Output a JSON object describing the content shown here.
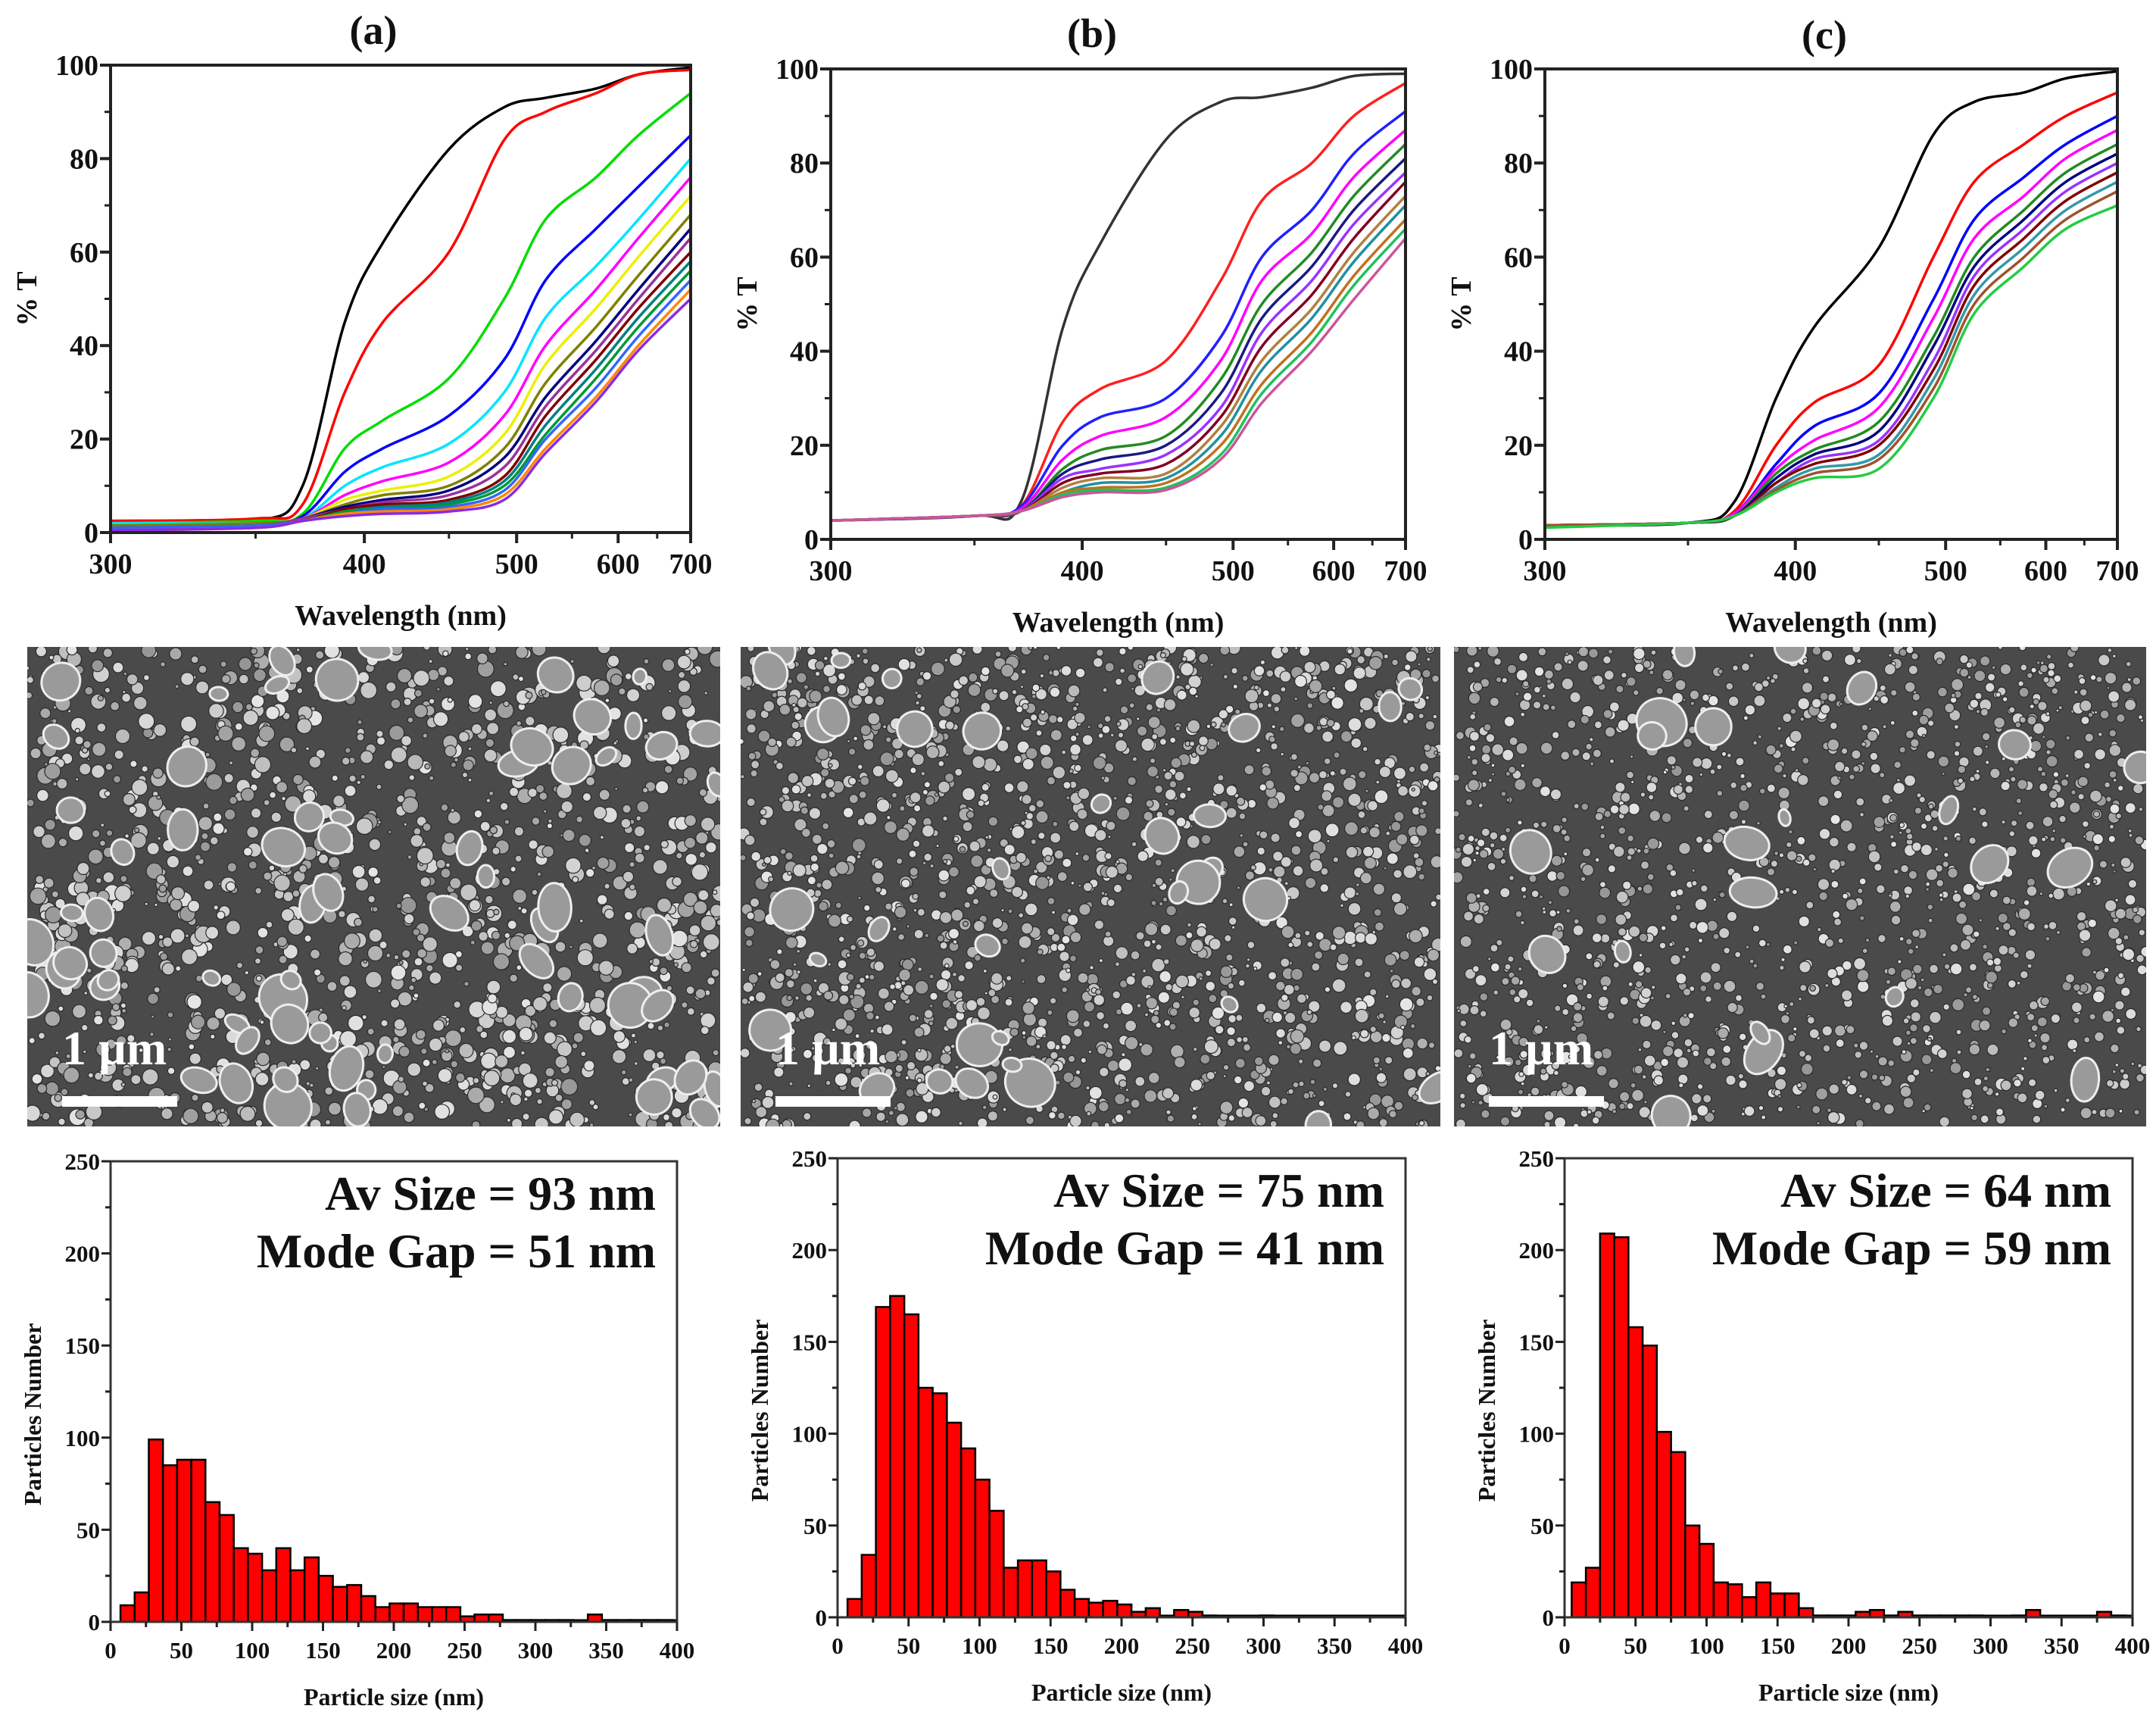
{
  "panels": [
    {
      "label": "(a)",
      "scale_label": "1 µm"
    },
    {
      "label": "(b)",
      "scale_label": "1 µm"
    },
    {
      "label": "(c)",
      "scale_label": "1 µm"
    }
  ],
  "chart_data": [
    {
      "type": "line",
      "panel": "(a)",
      "title": "(a)",
      "xlabel": "Wavelength (nm)",
      "ylabel": "% T",
      "xlim": [
        300,
        700
      ],
      "ylim": [
        0,
        100
      ],
      "x_scale": "reciprocal (energy)",
      "xticks": [
        "300",
        "400",
        "500",
        "600",
        "700"
      ],
      "yticks": [
        "0",
        "20",
        "40",
        "60",
        "80",
        "100"
      ],
      "x": [
        300,
        350,
        370,
        390,
        410,
        450,
        490,
        525,
        575,
        625,
        700
      ],
      "series": [
        {
          "color": "#000000",
          "values": [
            2,
            2.5,
            10,
            45,
            62,
            82,
            91,
            93,
            95,
            98,
            99.5
          ]
        },
        {
          "color": "#ff0000",
          "values": [
            2.5,
            3,
            6,
            30,
            45,
            60,
            84,
            90,
            94,
            98,
            99
          ]
        },
        {
          "color": "#00dd00",
          "values": [
            2,
            2.5,
            4,
            18,
            24,
            33,
            50,
            67,
            76,
            85,
            94
          ]
        },
        {
          "color": "#0000ff",
          "values": [
            1.5,
            2,
            3.5,
            13,
            18,
            25,
            37,
            54,
            65,
            74,
            85
          ]
        },
        {
          "color": "#00e5ff",
          "values": [
            2,
            2,
            3,
            10,
            14,
            19,
            30,
            46,
            57,
            67,
            80
          ]
        },
        {
          "color": "#ff00ff",
          "values": [
            1.5,
            2,
            3,
            8,
            11,
            15,
            25,
            40,
            52,
            63,
            76
          ]
        },
        {
          "color": "#eeee00",
          "values": [
            1.5,
            2,
            3,
            7,
            9,
            12,
            21,
            36,
            48,
            59,
            72
          ]
        },
        {
          "color": "#808000",
          "values": [
            1.5,
            2,
            3,
            6,
            8,
            10,
            18,
            32,
            44,
            55,
            68
          ]
        },
        {
          "color": "#000080",
          "values": [
            1,
            1.5,
            3,
            5.5,
            7,
            9,
            16,
            29,
            41,
            52,
            65
          ]
        },
        {
          "color": "#993399",
          "values": [
            1,
            1.5,
            3,
            5,
            6.5,
            8,
            14,
            27,
            39,
            50,
            63
          ]
        },
        {
          "color": "#800000",
          "values": [
            1,
            1.5,
            2.5,
            5,
            6,
            7,
            12,
            25,
            37,
            48,
            60
          ]
        },
        {
          "color": "#008080",
          "values": [
            1,
            1.5,
            2.5,
            4.5,
            5.5,
            6.5,
            11,
            23,
            35,
            46,
            58
          ]
        },
        {
          "color": "#009933",
          "values": [
            1,
            1.5,
            2.5,
            4.5,
            5,
            6,
            10,
            21,
            33,
            44,
            56
          ]
        },
        {
          "color": "#3366ff",
          "values": [
            1,
            1.5,
            2.5,
            4,
            5,
            5.5,
            9,
            20,
            31,
            42,
            54
          ]
        },
        {
          "color": "#ff8800",
          "values": [
            0.5,
            1,
            2.5,
            4,
            4.5,
            5,
            8,
            18,
            29,
            40,
            52
          ]
        },
        {
          "color": "#8a2be2",
          "values": [
            0.5,
            1,
            2.5,
            3.5,
            4,
            4.5,
            7,
            17,
            28,
            39,
            50
          ]
        }
      ]
    },
    {
      "type": "line",
      "panel": "(b)",
      "title": "(b)",
      "xlabel": "Wavelength (nm)",
      "ylabel": "% T",
      "xlim": [
        300,
        700
      ],
      "ylim": [
        0,
        100
      ],
      "x_scale": "reciprocal (energy)",
      "xticks": [
        "300",
        "400",
        "500",
        "600",
        "700"
      ],
      "yticks": [
        "0",
        "20",
        "40",
        "60",
        "80",
        "100"
      ],
      "x": [
        300,
        350,
        370,
        390,
        410,
        450,
        490,
        525,
        575,
        625,
        700
      ],
      "series": [
        {
          "color": "#333333",
          "values": [
            4,
            5,
            8,
            45,
            63,
            85,
            93,
            94,
            96,
            98.5,
            99
          ]
        },
        {
          "color": "#ff2020",
          "values": [
            4,
            5,
            7,
            25,
            32,
            38,
            55,
            72,
            80,
            90,
            97
          ]
        },
        {
          "color": "#2020ff",
          "values": [
            4,
            5,
            7,
            20,
            26,
            30,
            43,
            60,
            70,
            82,
            91
          ]
        },
        {
          "color": "#ff00ff",
          "values": [
            4,
            5,
            6.5,
            17,
            22,
            26,
            38,
            55,
            65,
            77,
            87
          ]
        },
        {
          "color": "#228b22",
          "values": [
            4,
            5,
            6,
            15,
            19,
            22,
            34,
            50,
            61,
            73,
            84
          ]
        },
        {
          "color": "#1a1a80",
          "values": [
            4,
            5,
            6,
            14,
            17,
            20,
            31,
            47,
            58,
            70,
            81
          ]
        },
        {
          "color": "#9933ff",
          "values": [
            4,
            5,
            6,
            13,
            15,
            18,
            28,
            44,
            55,
            67,
            78
          ]
        },
        {
          "color": "#800020",
          "values": [
            4,
            5,
            6,
            12,
            14,
            16,
            26,
            41,
            52,
            64,
            76
          ]
        },
        {
          "color": "#b08040",
          "values": [
            4,
            5,
            6,
            11,
            13,
            14,
            24,
            38,
            49,
            61,
            73
          ]
        },
        {
          "color": "#2090a0",
          "values": [
            4,
            5,
            6,
            10,
            12,
            13,
            22,
            36,
            47,
            59,
            71
          ]
        },
        {
          "color": "#c07020",
          "values": [
            4,
            5,
            6,
            10,
            11,
            12,
            20,
            33,
            44,
            56,
            68
          ]
        },
        {
          "color": "#20c060",
          "values": [
            4,
            5,
            6,
            9.5,
            10.5,
            11,
            18,
            31,
            42,
            54,
            66
          ]
        },
        {
          "color": "#cc5599",
          "values": [
            4,
            5,
            6,
            9,
            10,
            10.5,
            17,
            29,
            40,
            51,
            64
          ]
        }
      ]
    },
    {
      "type": "line",
      "panel": "(c)",
      "title": "(c)",
      "xlabel": "Wavelength (nm)",
      "ylabel": "% T",
      "xlim": [
        300,
        700
      ],
      "ylim": [
        0,
        100
      ],
      "x_scale": "reciprocal (energy)",
      "xticks": [
        "300",
        "400",
        "500",
        "600",
        "700"
      ],
      "yticks": [
        "0",
        "20",
        "40",
        "60",
        "80",
        "100"
      ],
      "x": [
        300,
        350,
        370,
        390,
        410,
        450,
        490,
        525,
        575,
        625,
        700
      ],
      "series": [
        {
          "color": "#000000",
          "values": [
            3,
            3.5,
            8,
            30,
            45,
            62,
            86,
            93,
            95,
            98,
            99.5
          ]
        },
        {
          "color": "#ff0000",
          "values": [
            3,
            3.5,
            6,
            20,
            29,
            37,
            60,
            76,
            84,
            90,
            95
          ]
        },
        {
          "color": "#0000ff",
          "values": [
            3,
            3.5,
            5.5,
            16,
            24,
            31,
            51,
            68,
            77,
            84,
            90
          ]
        },
        {
          "color": "#ff00ff",
          "values": [
            3,
            3.5,
            5.5,
            15,
            21,
            28,
            47,
            64,
            73,
            81,
            87
          ]
        },
        {
          "color": "#228b22",
          "values": [
            3,
            3.5,
            5,
            14,
            19,
            25,
            43,
            60,
            70,
            78,
            84
          ]
        },
        {
          "color": "#000080",
          "values": [
            3,
            3.5,
            5,
            13,
            18,
            23,
            41,
            58,
            68,
            76,
            82
          ]
        },
        {
          "color": "#9933ff",
          "values": [
            3,
            3.5,
            5,
            12,
            17,
            21,
            38,
            56,
            66,
            74,
            80
          ]
        },
        {
          "color": "#800000",
          "values": [
            3,
            3.5,
            5,
            12,
            16,
            20,
            36,
            54,
            64,
            72,
            78
          ]
        },
        {
          "color": "#3399aa",
          "values": [
            3,
            3.5,
            5,
            11,
            15,
            18,
            34,
            52,
            62,
            70,
            76
          ]
        },
        {
          "color": "#a0522d",
          "values": [
            3,
            3.5,
            5,
            10.5,
            14,
            17,
            32,
            50,
            60,
            68,
            74
          ]
        },
        {
          "color": "#22cc44",
          "values": [
            2.5,
            3.5,
            5,
            10,
            13,
            15,
            30,
            48,
            58,
            66,
            71
          ]
        }
      ]
    },
    {
      "type": "bar",
      "panel": "(a)",
      "xlabel": "Particle size (nm)",
      "ylabel": "Particles Number",
      "xlim": [
        0,
        400
      ],
      "ylim": [
        0,
        250
      ],
      "bin_width": 10,
      "xticks": [
        "0",
        "50",
        "100",
        "150",
        "200",
        "250",
        "300",
        "350",
        "400"
      ],
      "yticks": [
        "0",
        "50",
        "100",
        "150",
        "200",
        "250"
      ],
      "annotations": [
        "Av Size = 93 nm",
        "Mode Gap = 51 nm"
      ],
      "bin_centers": [
        12,
        22,
        32,
        42,
        52,
        62,
        72,
        82,
        92,
        102,
        112,
        122,
        132,
        142,
        152,
        162,
        172,
        182,
        192,
        202,
        212,
        222,
        232,
        242,
        252,
        262,
        272,
        282,
        292,
        302,
        312,
        322,
        332,
        342,
        352,
        362,
        372,
        382,
        392
      ],
      "counts": [
        9,
        16,
        99,
        85,
        88,
        88,
        65,
        58,
        40,
        37,
        28,
        40,
        28,
        35,
        25,
        19,
        20,
        14,
        8,
        10,
        10,
        8,
        8,
        8,
        3,
        4,
        4,
        1,
        1,
        1,
        1,
        1,
        0,
        4,
        1,
        1,
        1,
        1,
        1
      ]
    },
    {
      "type": "bar",
      "panel": "(b)",
      "xlabel": "Particle size (nm)",
      "ylabel": "Particles Number",
      "xlim": [
        0,
        400
      ],
      "ylim": [
        0,
        250
      ],
      "bin_width": 10,
      "xticks": [
        "0",
        "50",
        "100",
        "150",
        "200",
        "250",
        "300",
        "350",
        "400"
      ],
      "yticks": [
        "0",
        "50",
        "100",
        "150",
        "200",
        "250"
      ],
      "annotations": [
        "Av Size = 75 nm",
        "Mode Gap = 41 nm"
      ],
      "bin_centers": [
        12,
        22,
        32,
        42,
        52,
        62,
        72,
        82,
        92,
        102,
        112,
        122,
        132,
        142,
        152,
        162,
        172,
        182,
        192,
        202,
        212,
        222,
        232,
        242,
        252,
        262,
        272,
        282,
        292,
        302
      ],
      "counts": [
        10,
        34,
        169,
        175,
        165,
        125,
        122,
        106,
        92,
        75,
        58,
        27,
        31,
        31,
        25,
        15,
        10,
        8,
        9,
        7,
        3,
        5,
        0,
        4,
        3,
        1,
        0,
        0,
        0,
        1
      ]
    },
    {
      "type": "bar",
      "panel": "(c)",
      "xlabel": "Particle size (nm)",
      "ylabel": "Particles Number",
      "xlim": [
        0,
        400
      ],
      "ylim": [
        0,
        250
      ],
      "bin_width": 10,
      "xticks": [
        "0",
        "50",
        "100",
        "150",
        "200",
        "250",
        "300",
        "350",
        "400"
      ],
      "yticks": [
        "0",
        "50",
        "100",
        "150",
        "200",
        "250"
      ],
      "annotations": [
        "Av Size = 64 nm",
        "Mode Gap = 59 nm"
      ],
      "bin_centers": [
        10,
        20,
        30,
        40,
        50,
        60,
        70,
        80,
        90,
        100,
        110,
        120,
        130,
        140,
        150,
        160,
        170,
        180,
        190,
        200,
        210,
        220,
        230,
        240,
        250,
        260,
        270,
        280,
        290,
        300,
        310,
        320,
        330,
        340,
        350,
        360,
        370,
        380,
        390
      ],
      "counts": [
        19,
        27,
        209,
        207,
        158,
        148,
        101,
        90,
        50,
        40,
        19,
        18,
        11,
        19,
        13,
        13,
        5,
        1,
        1,
        1,
        3,
        4,
        1,
        3,
        1,
        1,
        1,
        1,
        1,
        0,
        0,
        1,
        4,
        0,
        0,
        0,
        0,
        3,
        1
      ]
    }
  ]
}
